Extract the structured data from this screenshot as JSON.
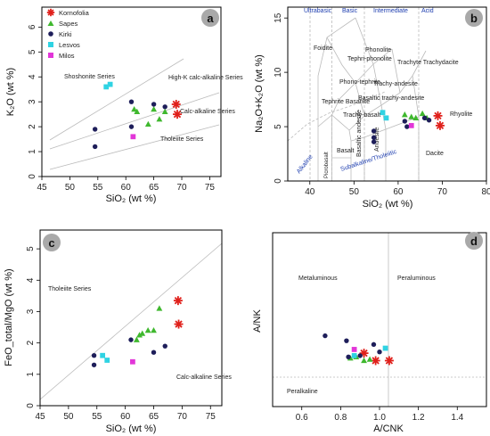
{
  "figure": {
    "panel_letters": [
      "a",
      "b",
      "c",
      "d"
    ]
  },
  "chart_data": [
    {
      "panel": "a",
      "type": "scatter",
      "xlabel": "SiO₂ (wt %)",
      "ylabel": "K₂O (wt %)",
      "xlim": [
        45,
        77
      ],
      "ylim": [
        0,
        6.8
      ],
      "xticks": [
        "45",
        "50",
        "55",
        "60",
        "65",
        "70",
        "75"
      ],
      "yticks": [
        "0",
        "1",
        "2",
        "3",
        "4",
        "5",
        "6"
      ],
      "legend": [
        {
          "name": "Kornofolia",
          "marker": "star",
          "color": "#e0201b"
        },
        {
          "name": "Sapes",
          "marker": "triangle",
          "color": "#3fb82e"
        },
        {
          "name": "Kirki",
          "marker": "circle",
          "color": "#1e1e5a"
        },
        {
          "name": "Lesvos",
          "marker": "square",
          "color": "#2fd3e3"
        },
        {
          "name": "Milos",
          "marker": "square",
          "color": "#e236d8"
        }
      ],
      "series_labels": [
        "Shoshonite Series",
        "High-K calc-alkaline Series",
        "Calc-alkaline Series",
        "Tholeiite Series"
      ],
      "series": [
        {
          "name": "Kornofolia",
          "points": [
            [
              69,
              2.9
            ],
            [
              69.2,
              2.5
            ]
          ]
        },
        {
          "name": "Sapes",
          "points": [
            [
              61.5,
              2.7
            ],
            [
              62,
              2.6
            ],
            [
              64,
              2.1
            ],
            [
              66,
              2.3
            ],
            [
              65,
              2.7
            ],
            [
              67,
              2.6
            ]
          ]
        },
        {
          "name": "Kirki",
          "points": [
            [
              54.5,
              1.9
            ],
            [
              54.5,
              1.2
            ],
            [
              61,
              3.0
            ],
            [
              61,
              2.0
            ],
            [
              65,
              2.9
            ],
            [
              67,
              2.8
            ]
          ]
        },
        {
          "name": "Lesvos",
          "points": [
            [
              56.5,
              3.6
            ],
            [
              57.2,
              3.7
            ]
          ]
        },
        {
          "name": "Milos",
          "points": [
            [
              61.3,
              1.6
            ]
          ]
        }
      ]
    },
    {
      "panel": "b",
      "type": "scatter",
      "xlabel": "SiO₂ (wt %)",
      "ylabel": "Na₂O+K₂O (wt %)",
      "xlim": [
        35,
        80
      ],
      "ylim": [
        0,
        16
      ],
      "xticks": [
        "40",
        "50",
        "60",
        "70",
        "80"
      ],
      "yticks": [
        "0",
        "5",
        "10",
        "15"
      ],
      "field_labels_black": [
        "Foidite",
        "Phonolite",
        "Tephri-phonolite",
        "Trachyte Trachydacite",
        "Phono-tephrite",
        "Trachy-andesite",
        "Tephrite Basanite",
        "Basaltic trachy-andesite",
        "Trachy-basalt",
        "Rhyolite",
        "Basalt",
        "Basaltic andesite",
        "Andesite",
        "Dacite",
        "Picrobasalt"
      ],
      "field_labels_blue": [
        "Ultrabasic",
        "Basic",
        "Intermediate",
        "Acid",
        "Alkaline",
        "Subalkaline/Tholeiitic"
      ],
      "series": [
        {
          "name": "Kornofolia",
          "points": [
            [
              69,
              6.0
            ],
            [
              69.5,
              5.1
            ]
          ]
        },
        {
          "name": "Sapes",
          "points": [
            [
              61.5,
              6.1
            ],
            [
              64,
              5.8
            ],
            [
              65.5,
              6.2
            ],
            [
              66.5,
              5.8
            ],
            [
              63,
              5.9
            ]
          ]
        },
        {
          "name": "Kirki",
          "points": [
            [
              54.5,
              4.6
            ],
            [
              54.5,
              4.0
            ],
            [
              54.5,
              3.6
            ],
            [
              61.5,
              5.5
            ],
            [
              62,
              5.0
            ],
            [
              66,
              5.8
            ],
            [
              67,
              5.6
            ]
          ]
        },
        {
          "name": "Lesvos",
          "points": [
            [
              56.5,
              6.3
            ],
            [
              57.3,
              5.8
            ]
          ]
        },
        {
          "name": "Milos",
          "points": [
            [
              63,
              5.1
            ]
          ]
        }
      ]
    },
    {
      "panel": "c",
      "type": "scatter",
      "xlabel": "SiO₂ (wt %)",
      "ylabel": "FeO_total/MgO (wt %)",
      "xlim": [
        45,
        77
      ],
      "ylim": [
        0,
        5.6
      ],
      "xticks": [
        "45",
        "50",
        "55",
        "60",
        "65",
        "70",
        "75"
      ],
      "yticks": [
        "0",
        "1",
        "2",
        "3",
        "4",
        "5"
      ],
      "series_labels": [
        "Tholeiite Series",
        "Calc-alkaline Series"
      ],
      "series": [
        {
          "name": "Kornofolia",
          "points": [
            [
              69.3,
              3.35
            ],
            [
              69.4,
              2.6
            ]
          ]
        },
        {
          "name": "Sapes",
          "points": [
            [
              62,
              2.1
            ],
            [
              62.5,
              2.25
            ],
            [
              63,
              2.3
            ],
            [
              64,
              2.4
            ],
            [
              65,
              2.4
            ],
            [
              66,
              3.1
            ]
          ]
        },
        {
          "name": "Kirki",
          "points": [
            [
              54.5,
              1.6
            ],
            [
              54.5,
              1.3
            ],
            [
              61,
              2.1
            ],
            [
              65,
              1.7
            ],
            [
              67,
              1.9
            ]
          ]
        },
        {
          "name": "Lesvos",
          "points": [
            [
              56,
              1.6
            ],
            [
              56.8,
              1.45
            ]
          ]
        },
        {
          "name": "Milos",
          "points": [
            [
              61.3,
              1.4
            ]
          ]
        }
      ]
    },
    {
      "panel": "d",
      "type": "scatter",
      "xlabel": "A/CNK",
      "ylabel": "A/NK",
      "xlim": [
        0.45,
        1.55
      ],
      "ylim": [
        0,
        7
      ],
      "xticks": [
        "0.6",
        "0.8",
        "1.0",
        "1.2",
        "1.4"
      ],
      "series_labels": [
        "Metaluminous",
        "Peraluminous",
        "Peralkaline"
      ],
      "series": [
        {
          "name": "Kornofolia",
          "points": [
            [
              0.92,
              2.15
            ],
            [
              0.98,
              1.85
            ],
            [
              1.05,
              1.85
            ]
          ]
        },
        {
          "name": "Sapes",
          "points": [
            [
              0.85,
              1.95
            ],
            [
              0.88,
              2.0
            ],
            [
              0.92,
              1.85
            ],
            [
              0.95,
              1.9
            ]
          ]
        },
        {
          "name": "Kirki",
          "points": [
            [
              0.72,
              2.85
            ],
            [
              0.83,
              2.65
            ],
            [
              0.84,
              2.0
            ],
            [
              0.97,
              2.5
            ],
            [
              1.0,
              2.2
            ],
            [
              0.9,
              2.05
            ]
          ]
        },
        {
          "name": "Lesvos",
          "points": [
            [
              0.87,
              2.05
            ],
            [
              1.03,
              2.35
            ]
          ]
        },
        {
          "name": "Milos",
          "points": [
            [
              0.87,
              2.3
            ]
          ]
        }
      ]
    }
  ]
}
